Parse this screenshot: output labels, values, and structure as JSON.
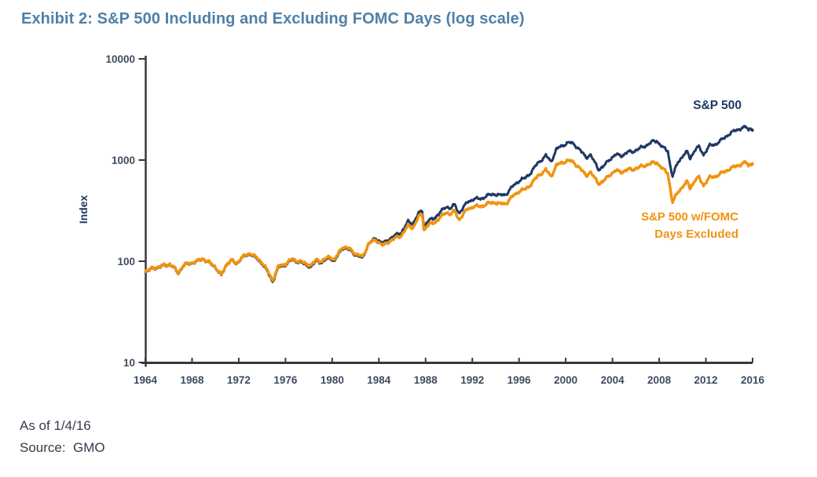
{
  "page": {
    "title": "Exhibit 2: S&P 500 Including and Excluding FOMC Days (log scale)",
    "footer": {
      "as_of": "As of 1/4/16",
      "source": "Source:  GMO"
    }
  },
  "chart_data": {
    "type": "line",
    "title": "Exhibit 2: S&P 500 Including and Excluding FOMC Days (log scale)",
    "xlabel": "",
    "ylabel": "Index",
    "y_scale": "log",
    "x_range": [
      1964,
      2016
    ],
    "y_range": [
      10,
      10000
    ],
    "y_ticks": [
      10,
      100,
      1000,
      10000
    ],
    "x_ticks": [
      1964,
      1968,
      1972,
      1976,
      1980,
      1984,
      1988,
      1992,
      1996,
      2000,
      2004,
      2008,
      2012,
      2016
    ],
    "grid": false,
    "legend_position": "inline-annotations",
    "colors": {
      "sp500": "#1f3864",
      "fomc_excluded": "#f1930f",
      "axis": "#383838",
      "title": "#4e80a8"
    },
    "series": [
      {
        "name": "S&P 500",
        "label": "S&P 500",
        "color": "#1f3864",
        "stroke_width": 3,
        "points": [
          [
            1964.0,
            79
          ],
          [
            1964.6,
            84
          ],
          [
            1965.4,
            89
          ],
          [
            1966.1,
            93
          ],
          [
            1966.45,
            86
          ],
          [
            1966.8,
            76
          ],
          [
            1967.3,
            91
          ],
          [
            1967.8,
            95
          ],
          [
            1968.35,
            98
          ],
          [
            1968.9,
            106
          ],
          [
            1969.4,
            97
          ],
          [
            1969.9,
            90
          ],
          [
            1970.5,
            72
          ],
          [
            1971.0,
            95
          ],
          [
            1971.4,
            101
          ],
          [
            1971.8,
            94
          ],
          [
            1972.2,
            107
          ],
          [
            1973.0,
            119
          ],
          [
            1973.6,
            104
          ],
          [
            1974.1,
            93
          ],
          [
            1974.9,
            63
          ],
          [
            1975.4,
            87
          ],
          [
            1975.9,
            91
          ],
          [
            1976.6,
            103
          ],
          [
            1977.3,
            97
          ],
          [
            1978.2,
            88
          ],
          [
            1978.7,
            102
          ],
          [
            1979.1,
            97
          ],
          [
            1979.8,
            109
          ],
          [
            1980.2,
            100
          ],
          [
            1980.9,
            137
          ],
          [
            1981.5,
            129
          ],
          [
            1982.0,
            116
          ],
          [
            1982.6,
            107
          ],
          [
            1983.1,
            148
          ],
          [
            1983.7,
            168
          ],
          [
            1984.4,
            150
          ],
          [
            1985.0,
            170
          ],
          [
            1985.9,
            192
          ],
          [
            1986.5,
            245
          ],
          [
            1986.9,
            236
          ],
          [
            1987.4,
            295
          ],
          [
            1987.72,
            318
          ],
          [
            1987.85,
            222
          ],
          [
            1988.2,
            250
          ],
          [
            1988.7,
            264
          ],
          [
            1989.1,
            294
          ],
          [
            1989.8,
            348
          ],
          [
            1990.1,
            334
          ],
          [
            1990.5,
            360
          ],
          [
            1990.85,
            300
          ],
          [
            1991.2,
            335
          ],
          [
            1991.6,
            385
          ],
          [
            1992.1,
            412
          ],
          [
            1992.7,
            414
          ],
          [
            1993.3,
            445
          ],
          [
            1993.9,
            463
          ],
          [
            1994.35,
            446
          ],
          [
            1994.9,
            460
          ],
          [
            1995.5,
            555
          ],
          [
            1996.0,
            625
          ],
          [
            1996.5,
            660
          ],
          [
            1997.0,
            750
          ],
          [
            1997.6,
            930
          ],
          [
            1998.3,
            1105
          ],
          [
            1998.75,
            965
          ],
          [
            1999.2,
            1280
          ],
          [
            1999.9,
            1430
          ],
          [
            2000.25,
            1490
          ],
          [
            2000.7,
            1440
          ],
          [
            2001.1,
            1300
          ],
          [
            2001.75,
            1060
          ],
          [
            2002.1,
            1130
          ],
          [
            2002.8,
            815
          ],
          [
            2003.2,
            855
          ],
          [
            2003.8,
            1030
          ],
          [
            2004.3,
            1130
          ],
          [
            2004.8,
            1105
          ],
          [
            2005.3,
            1195
          ],
          [
            2005.8,
            1220
          ],
          [
            2006.3,
            1295
          ],
          [
            2006.9,
            1400
          ],
          [
            2007.5,
            1530
          ],
          [
            2007.8,
            1550
          ],
          [
            2008.3,
            1330
          ],
          [
            2008.75,
            1230
          ],
          [
            2008.95,
            880
          ],
          [
            2009.15,
            690
          ],
          [
            2009.6,
            950
          ],
          [
            2010.1,
            1130
          ],
          [
            2010.4,
            1200
          ],
          [
            2010.65,
            1040
          ],
          [
            2011.1,
            1280
          ],
          [
            2011.4,
            1345
          ],
          [
            2011.8,
            1135
          ],
          [
            2012.3,
            1380
          ],
          [
            2012.8,
            1430
          ],
          [
            2013.3,
            1560
          ],
          [
            2013.9,
            1780
          ],
          [
            2014.5,
            1950
          ],
          [
            2015.0,
            2060
          ],
          [
            2015.45,
            2115
          ],
          [
            2015.65,
            1990
          ],
          [
            2015.85,
            2090
          ],
          [
            2016.0,
            1995
          ]
        ]
      },
      {
        "name": "S&P 500 w/FOMC Days Excluded",
        "label_line1": "S&P 500 w/FOMC",
        "label_line2": "Days Excluded",
        "color": "#f1930f",
        "stroke_width": 3.4,
        "points": [
          [
            1964.0,
            80
          ],
          [
            1964.6,
            85
          ],
          [
            1965.4,
            90
          ],
          [
            1966.1,
            94
          ],
          [
            1966.45,
            87
          ],
          [
            1966.8,
            77
          ],
          [
            1967.3,
            92
          ],
          [
            1967.8,
            96
          ],
          [
            1968.35,
            99
          ],
          [
            1968.9,
            107
          ],
          [
            1969.4,
            98
          ],
          [
            1969.9,
            91
          ],
          [
            1970.5,
            73
          ],
          [
            1971.0,
            96
          ],
          [
            1971.4,
            102
          ],
          [
            1971.8,
            95
          ],
          [
            1972.2,
            108
          ],
          [
            1973.0,
            121
          ],
          [
            1973.6,
            106
          ],
          [
            1974.1,
            95
          ],
          [
            1974.9,
            65
          ],
          [
            1975.4,
            89
          ],
          [
            1975.9,
            93
          ],
          [
            1976.6,
            105
          ],
          [
            1977.3,
            99
          ],
          [
            1978.2,
            91
          ],
          [
            1978.7,
            104
          ],
          [
            1979.1,
            100
          ],
          [
            1979.8,
            112
          ],
          [
            1980.2,
            103
          ],
          [
            1980.9,
            140
          ],
          [
            1981.5,
            132
          ],
          [
            1982.0,
            119
          ],
          [
            1982.6,
            110
          ],
          [
            1983.1,
            149
          ],
          [
            1983.7,
            162
          ],
          [
            1984.4,
            143
          ],
          [
            1985.0,
            161
          ],
          [
            1985.9,
            179
          ],
          [
            1986.5,
            224
          ],
          [
            1986.9,
            214
          ],
          [
            1987.4,
            272
          ],
          [
            1987.72,
            296
          ],
          [
            1987.85,
            204
          ],
          [
            1988.2,
            228
          ],
          [
            1988.7,
            239
          ],
          [
            1989.1,
            262
          ],
          [
            1989.8,
            306
          ],
          [
            1990.1,
            292
          ],
          [
            1990.5,
            312
          ],
          [
            1990.85,
            258
          ],
          [
            1991.2,
            288
          ],
          [
            1991.6,
            328
          ],
          [
            1992.1,
            348
          ],
          [
            1992.7,
            348
          ],
          [
            1993.3,
            370
          ],
          [
            1993.9,
            383
          ],
          [
            1994.35,
            367
          ],
          [
            1994.9,
            374
          ],
          [
            1995.5,
            443
          ],
          [
            1996.0,
            492
          ],
          [
            1996.5,
            512
          ],
          [
            1997.0,
            572
          ],
          [
            1997.6,
            695
          ],
          [
            1998.3,
            800
          ],
          [
            1998.75,
            688
          ],
          [
            1999.2,
            890
          ],
          [
            1999.9,
            965
          ],
          [
            2000.25,
            990
          ],
          [
            2000.7,
            945
          ],
          [
            2001.1,
            855
          ],
          [
            2001.75,
            705
          ],
          [
            2002.1,
            760
          ],
          [
            2002.8,
            590
          ],
          [
            2003.2,
            612
          ],
          [
            2003.8,
            722
          ],
          [
            2004.3,
            785
          ],
          [
            2004.8,
            762
          ],
          [
            2005.3,
            805
          ],
          [
            2005.8,
            812
          ],
          [
            2006.3,
            848
          ],
          [
            2006.9,
            895
          ],
          [
            2007.5,
            938
          ],
          [
            2007.8,
            948
          ],
          [
            2008.3,
            815
          ],
          [
            2008.75,
            742
          ],
          [
            2008.95,
            525
          ],
          [
            2009.15,
            382
          ],
          [
            2009.6,
            480
          ],
          [
            2010.1,
            565
          ],
          [
            2010.4,
            608
          ],
          [
            2010.65,
            528
          ],
          [
            2011.1,
            640
          ],
          [
            2011.4,
            672
          ],
          [
            2011.8,
            565
          ],
          [
            2012.3,
            668
          ],
          [
            2012.8,
            690
          ],
          [
            2013.3,
            735
          ],
          [
            2013.9,
            805
          ],
          [
            2014.5,
            862
          ],
          [
            2015.0,
            908
          ],
          [
            2015.45,
            948
          ],
          [
            2015.65,
            882
          ],
          [
            2015.85,
            932
          ],
          [
            2016.0,
            925
          ]
        ]
      }
    ],
    "annotations": {
      "as_of": "As of 1/4/16",
      "source": "Source:  GMO"
    }
  }
}
